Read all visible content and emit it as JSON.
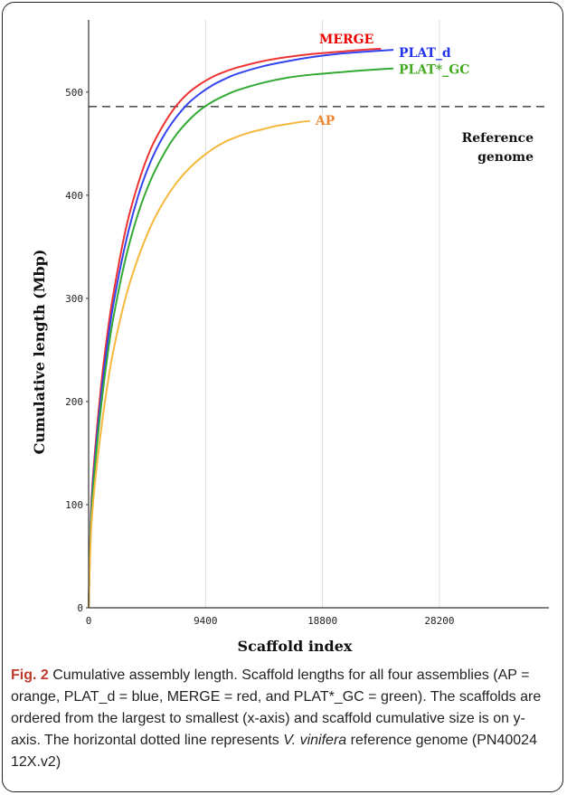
{
  "chart_data": {
    "type": "line",
    "xlabel": "Scaffold index",
    "ylabel": "Cumulative length (Mbp)",
    "xlim": [
      0,
      37000
    ],
    "ylim": [
      0,
      570
    ],
    "xticks": [
      0,
      9400,
      18800,
      28200
    ],
    "yticks": [
      0,
      100,
      200,
      300,
      400,
      500
    ],
    "grid": "vertical",
    "series": [
      {
        "name": "MERGE",
        "color": "#ee3333",
        "label_color": "#ee0000",
        "x": [
          0,
          200,
          500,
          1000,
          1500,
          2000,
          3000,
          4000,
          5000,
          6000,
          7000,
          8000,
          9000,
          10000,
          11000,
          12000,
          14000,
          16000,
          18000,
          20000,
          22000,
          23500
        ],
        "y": [
          0,
          95,
          150,
          215,
          265,
          305,
          368,
          412,
          445,
          468,
          486,
          499,
          508,
          515,
          520,
          524,
          530,
          534,
          537,
          539,
          541,
          542
        ]
      },
      {
        "name": "PLAT_d",
        "color": "#3344ee",
        "label_color": "#2233ee",
        "x": [
          0,
          200,
          500,
          1000,
          1500,
          2000,
          3000,
          4000,
          5000,
          6000,
          7000,
          8000,
          9000,
          10000,
          11000,
          12000,
          14000,
          16000,
          18000,
          20000,
          22000,
          24500
        ],
        "y": [
          0,
          90,
          142,
          205,
          255,
          295,
          355,
          400,
          433,
          457,
          475,
          489,
          499,
          507,
          513,
          518,
          525,
          530,
          534,
          537,
          539,
          541
        ]
      },
      {
        "name": "PLAT*_GC",
        "color": "#33aa33",
        "label_color": "#44aa22",
        "x": [
          0,
          200,
          500,
          1000,
          1500,
          2000,
          3000,
          4000,
          5000,
          6000,
          7000,
          8000,
          9000,
          10000,
          11000,
          12000,
          14000,
          16000,
          18000,
          20000,
          22000,
          24500
        ],
        "y": [
          0,
          85,
          135,
          195,
          243,
          282,
          340,
          383,
          415,
          439,
          458,
          472,
          483,
          491,
          497,
          502,
          509,
          514,
          517,
          519,
          521,
          523
        ]
      },
      {
        "name": "AP",
        "color": "#f5b83d",
        "label_color": "#ee8833",
        "x": [
          0,
          200,
          500,
          1000,
          1500,
          2000,
          3000,
          4000,
          5000,
          6000,
          7000,
          8000,
          9000,
          10000,
          11000,
          12000,
          13000,
          14000,
          15000,
          16000,
          17000,
          17800
        ],
        "y": [
          0,
          75,
          120,
          172,
          215,
          250,
          302,
          340,
          370,
          393,
          411,
          425,
          436,
          445,
          452,
          457,
          461,
          464,
          467,
          469,
          471,
          472
        ]
      }
    ],
    "reference_line": {
      "y": 486,
      "style": "dashed",
      "color": "#555555",
      "label_lines": [
        "Reference",
        "genome"
      ]
    }
  },
  "caption": {
    "fig_label": "Fig. 2",
    "text": " Cumulative assembly length. Scaffold lengths for all four assemblies (AP = orange, PLAT_d = blue, MERGE = red, and PLAT*_GC = green). The scaffolds are ordered from the largest to smallest (x-axis) and scaffold cumulative size is on y-axis. The horizontal dotted line represents ",
    "species": "V. vinifera",
    "text_end": " reference genome (PN40024 12X.v2)"
  }
}
